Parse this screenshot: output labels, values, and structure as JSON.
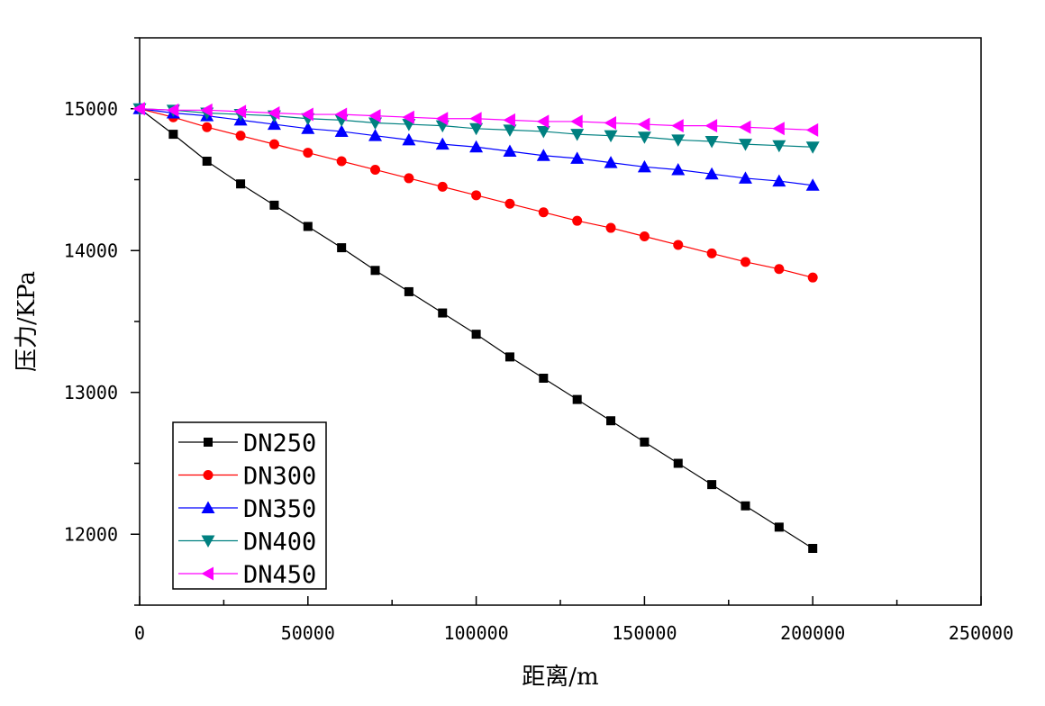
{
  "chart_data": {
    "type": "line",
    "xlabel": "距离/m",
    "ylabel": "压力/KPa",
    "xlim": [
      0,
      250000
    ],
    "ylim": [
      11500,
      15500
    ],
    "x_ticks": [
      0,
      50000,
      100000,
      150000,
      200000,
      250000
    ],
    "y_ticks": [
      12000,
      13000,
      14000,
      15000
    ],
    "x_tick_labels": [
      "0",
      "50000",
      "100000",
      "150000",
      "200000",
      "250000"
    ],
    "y_tick_labels": [
      "12000",
      "13000",
      "14000",
      "15000"
    ],
    "grid": false,
    "legend_position": "bottom-left",
    "x": [
      0,
      10000,
      20000,
      30000,
      40000,
      50000,
      60000,
      70000,
      80000,
      90000,
      100000,
      110000,
      120000,
      130000,
      140000,
      150000,
      160000,
      170000,
      180000,
      190000,
      200000
    ],
    "series": [
      {
        "name": "DN250",
        "color": "#000000",
        "marker": "square",
        "values": [
          15000,
          14820,
          14630,
          14470,
          14320,
          14170,
          14020,
          13860,
          13710,
          13560,
          13410,
          13250,
          13100,
          12950,
          12800,
          12650,
          12500,
          12350,
          12200,
          12050,
          11900
        ]
      },
      {
        "name": "DN300",
        "color": "#ff0000",
        "marker": "circle",
        "values": [
          15000,
          14940,
          14870,
          14810,
          14750,
          14690,
          14630,
          14570,
          14510,
          14450,
          14390,
          14330,
          14270,
          14210,
          14160,
          14100,
          14040,
          13980,
          13920,
          13870,
          13810
        ]
      },
      {
        "name": "DN350",
        "color": "#0000ff",
        "marker": "triangle-up",
        "values": [
          15000,
          14970,
          14950,
          14920,
          14890,
          14860,
          14840,
          14810,
          14780,
          14750,
          14730,
          14700,
          14670,
          14650,
          14620,
          14590,
          14570,
          14540,
          14510,
          14490,
          14460
        ]
      },
      {
        "name": "DN400",
        "color": "#008080",
        "marker": "triangle-down",
        "values": [
          15000,
          14990,
          14970,
          14960,
          14950,
          14930,
          14920,
          14900,
          14890,
          14880,
          14860,
          14850,
          14840,
          14820,
          14810,
          14800,
          14780,
          14770,
          14750,
          14740,
          14730
        ]
      },
      {
        "name": "DN450",
        "color": "#ff00ff",
        "marker": "triangle-left",
        "values": [
          15000,
          14990,
          14990,
          14980,
          14970,
          14960,
          14960,
          14950,
          14940,
          14930,
          14930,
          14920,
          14910,
          14910,
          14900,
          14890,
          14880,
          14880,
          14870,
          14860,
          14850
        ]
      }
    ]
  }
}
